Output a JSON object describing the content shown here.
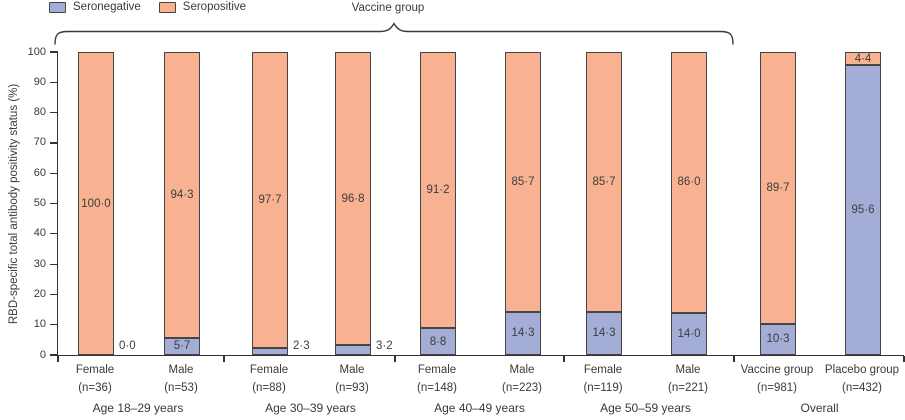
{
  "figure": {
    "brace_label": "Vaccine group",
    "legend": [
      {
        "label": "Seronegative",
        "color": "#a4add6"
      },
      {
        "label": "Seropositive",
        "color": "#f8b291"
      }
    ]
  },
  "chart_data": {
    "type": "bar",
    "stacked": true,
    "orientation": "vertical",
    "title": "",
    "ylabel": "RBD-specific total antibody positivity status (%)",
    "ylim": [
      0,
      100
    ],
    "yticks": [
      0,
      10,
      20,
      30,
      40,
      50,
      60,
      70,
      80,
      90,
      100
    ],
    "grid": false,
    "legend_position": "top-left",
    "legend": [
      "Seronegative",
      "Seropositive"
    ],
    "colors": {
      "seronegative": "#a4add6",
      "seropositive": "#f8b291"
    },
    "brace": {
      "label": "Vaccine group",
      "covers": "all bars except Placebo group"
    },
    "groups": [
      {
        "label": "Age 18–29 years",
        "bars": [
          {
            "category": "Female",
            "n": "(n=36)",
            "seronegative": 0.0,
            "seropositive": 100.0,
            "seronegative_label": "0·0",
            "seropositive_label": "100·0",
            "seronegative_label_placement": "outside"
          },
          {
            "category": "Male",
            "n": "(n=53)",
            "seronegative": 5.7,
            "seropositive": 94.3,
            "seronegative_label": "5·7",
            "seropositive_label": "94·3",
            "seronegative_label_placement": "inside"
          }
        ]
      },
      {
        "label": "Age 30–39 years",
        "bars": [
          {
            "category": "Female",
            "n": "(n=88)",
            "seronegative": 2.3,
            "seropositive": 97.7,
            "seronegative_label": "2·3",
            "seropositive_label": "97·7",
            "seronegative_label_placement": "outside"
          },
          {
            "category": "Male",
            "n": "(n=93)",
            "seronegative": 3.2,
            "seropositive": 96.8,
            "seronegative_label": "3·2",
            "seropositive_label": "96·8",
            "seronegative_label_placement": "outside"
          }
        ]
      },
      {
        "label": "Age 40–49 years",
        "bars": [
          {
            "category": "Female",
            "n": "(n=148)",
            "seronegative": 8.8,
            "seropositive": 91.2,
            "seronegative_label": "8·8",
            "seropositive_label": "91·2",
            "seronegative_label_placement": "inside"
          },
          {
            "category": "Male",
            "n": "(n=223)",
            "seronegative": 14.3,
            "seropositive": 85.7,
            "seronegative_label": "14·3",
            "seropositive_label": "85·7",
            "seronegative_label_placement": "inside"
          }
        ]
      },
      {
        "label": "Age 50–59 years",
        "bars": [
          {
            "category": "Female",
            "n": "(n=119)",
            "seronegative": 14.3,
            "seropositive": 85.7,
            "seronegative_label": "14·3",
            "seropositive_label": "85·7",
            "seronegative_label_placement": "inside"
          },
          {
            "category": "Male",
            "n": "(n=221)",
            "seronegative": 14.0,
            "seropositive": 86.0,
            "seronegative_label": "14·0",
            "seropositive_label": "86·0",
            "seronegative_label_placement": "inside"
          }
        ]
      },
      {
        "label": "Overall",
        "bars": [
          {
            "category": "Vaccine group",
            "n": "(n=981)",
            "seronegative": 10.3,
            "seropositive": 89.7,
            "seronegative_label": "10·3",
            "seropositive_label": "89·7",
            "seronegative_label_placement": "inside"
          },
          {
            "category": "Placebo group",
            "n": "(n=432)",
            "seronegative": 95.6,
            "seropositive": 4.4,
            "seronegative_label": "95·6",
            "seropositive_label": "4·4",
            "seronegative_label_placement": "inside"
          }
        ]
      }
    ]
  }
}
